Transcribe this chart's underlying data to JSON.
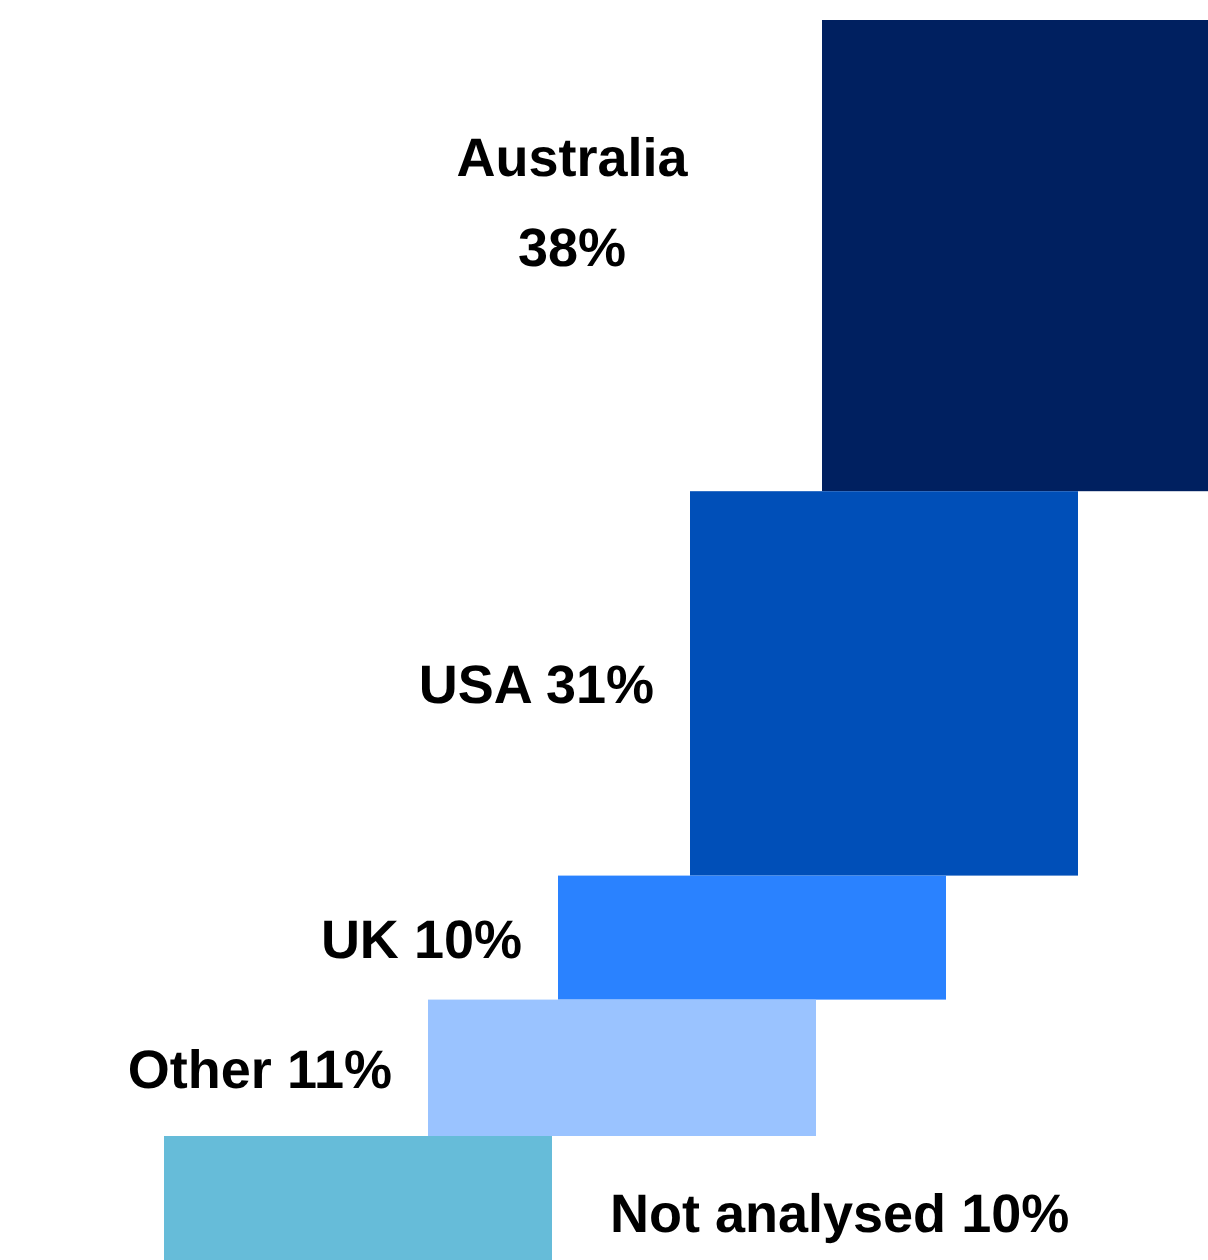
{
  "chart_data": {
    "type": "other",
    "categories": [
      "Australia",
      "USA",
      "UK",
      "Other",
      "Not analysed"
    ],
    "values": [
      38,
      31,
      10,
      11,
      10
    ],
    "value_labels": [
      "38%",
      "31%",
      "10%",
      "11%",
      "10%"
    ],
    "colors": [
      "#002060",
      "#004fb8",
      "#2a82ff",
      "#9ac3ff",
      "#66bcd9"
    ]
  }
}
